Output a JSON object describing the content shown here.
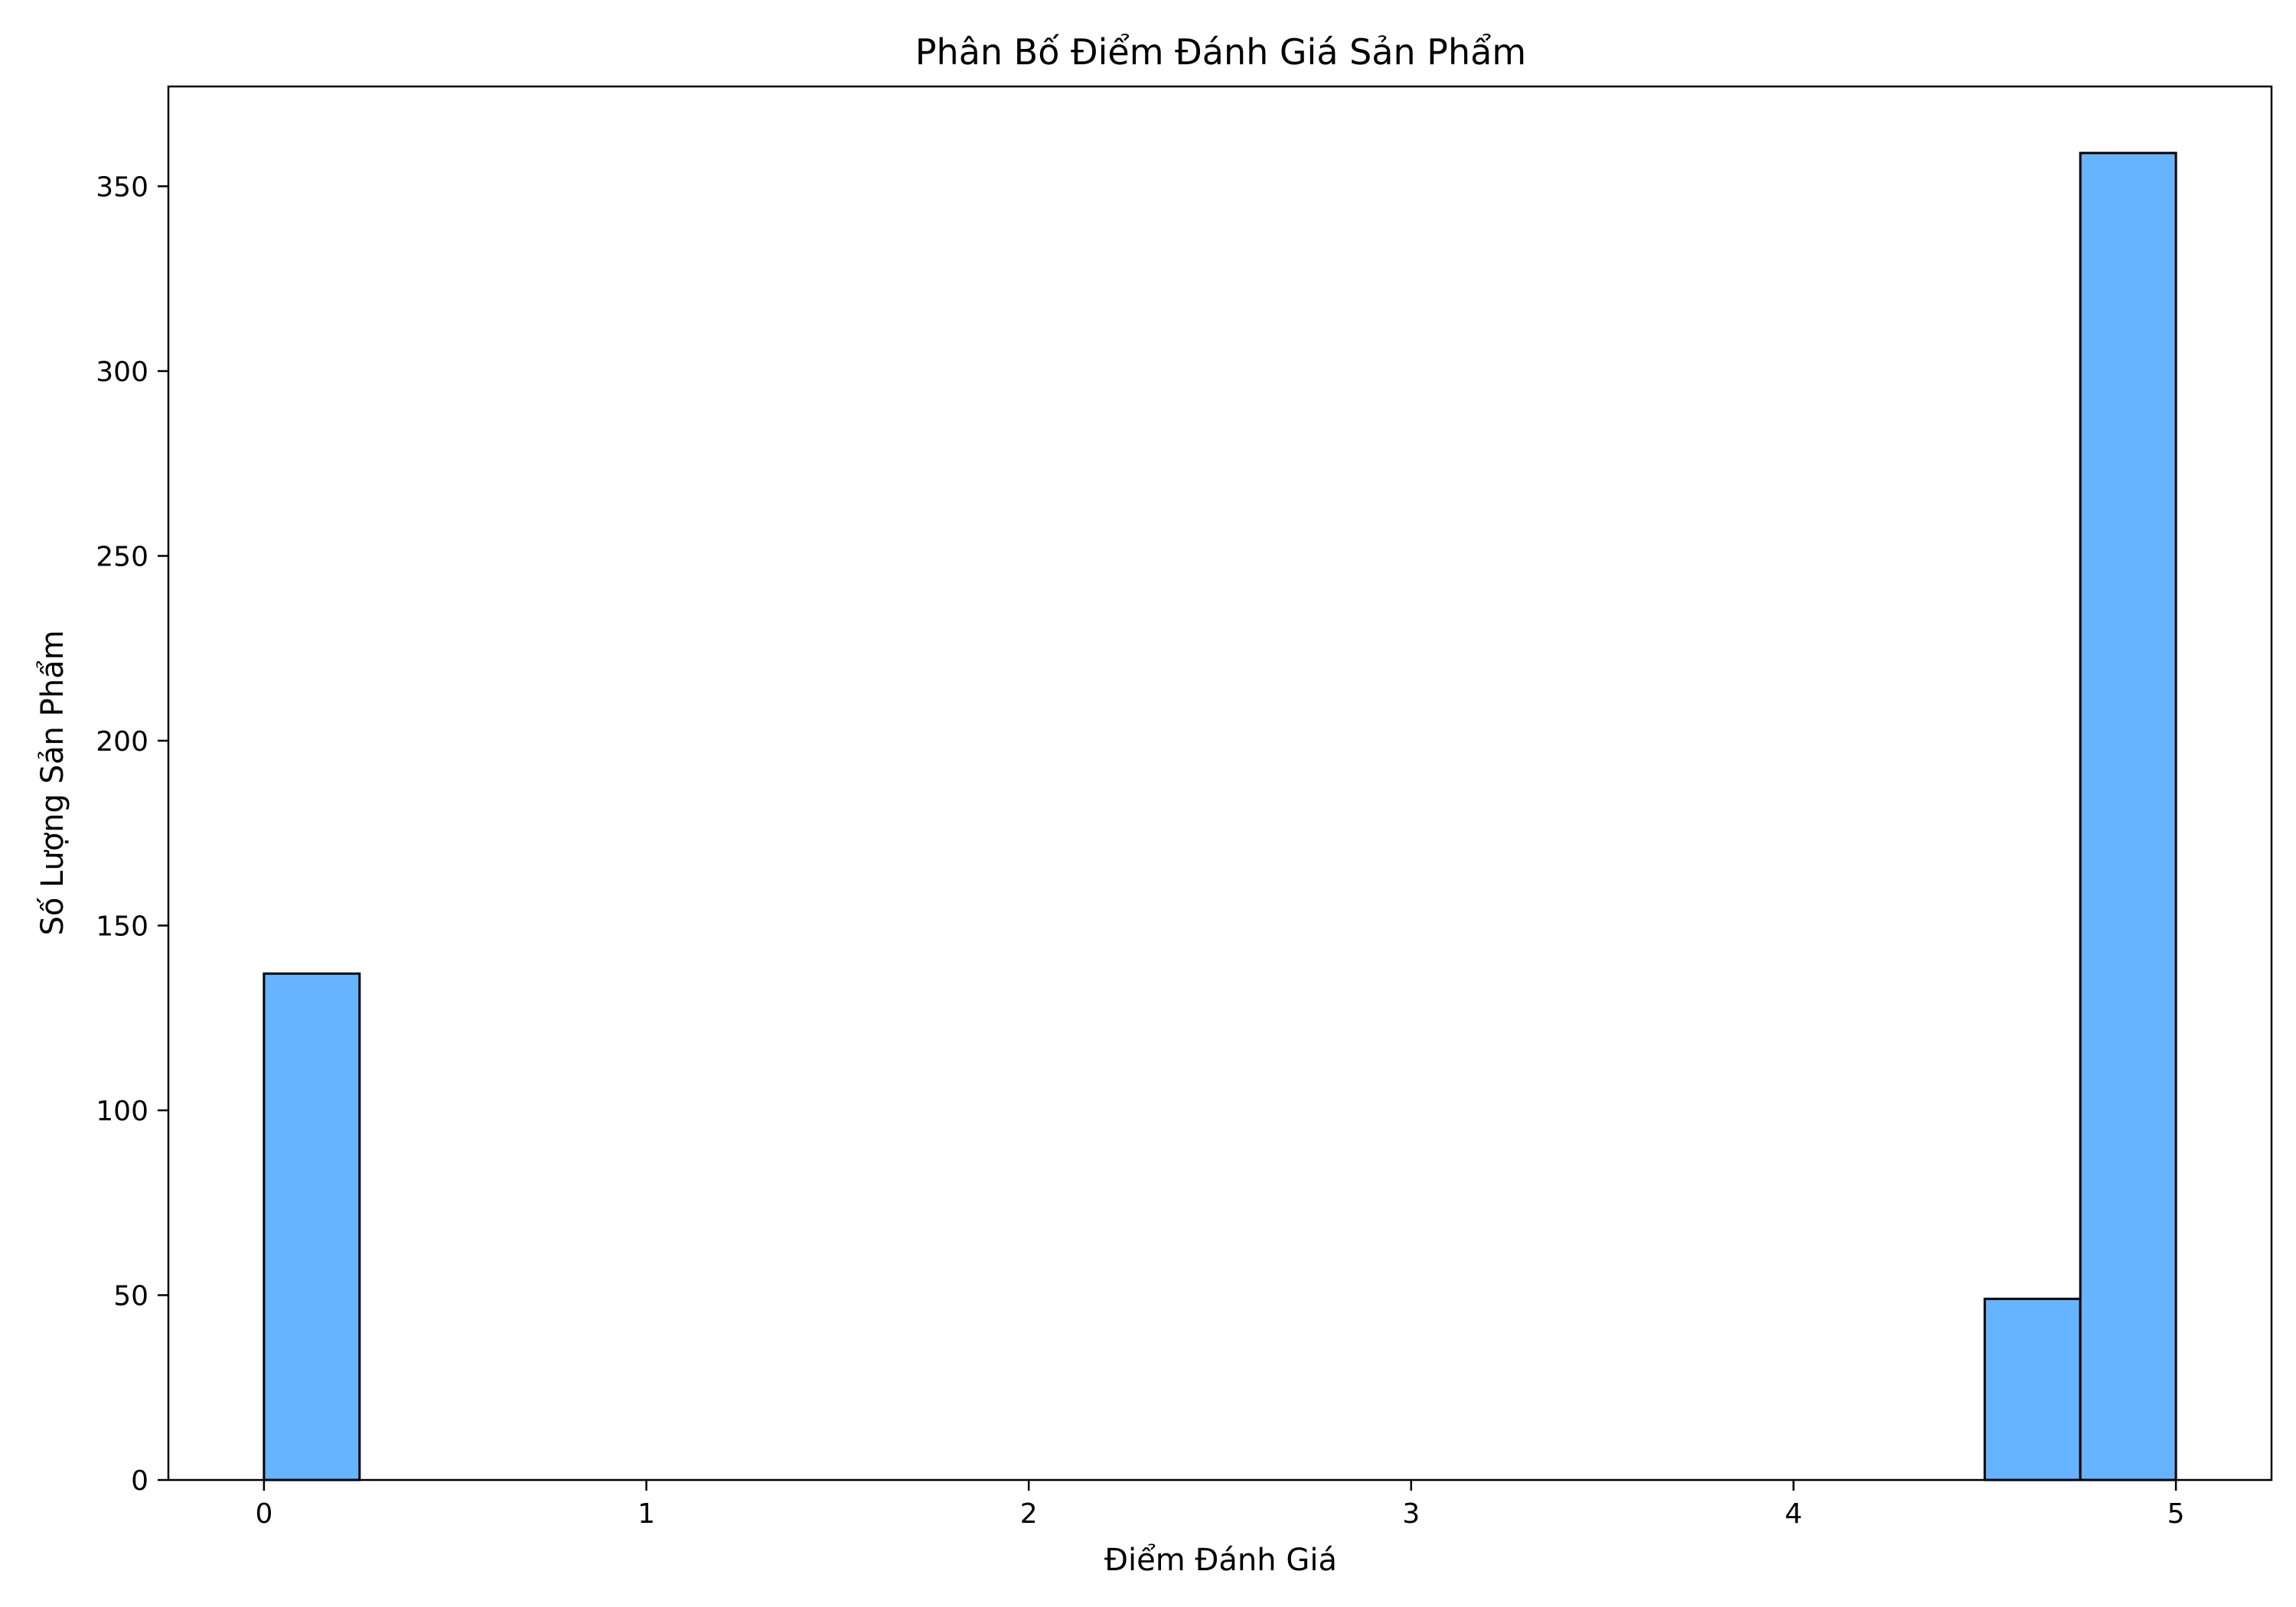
{
  "chart_data": {
    "type": "bar",
    "title": "Phân Bố Điểm Đánh Giá Sản Phẩm",
    "xlabel": "Điểm Đánh Giá",
    "ylabel": "Số Lượng Sản Phẩm",
    "xlim": [
      -0.25,
      5.25
    ],
    "ylim": [
      0,
      377
    ],
    "xticks": [
      0,
      1,
      2,
      3,
      4,
      5
    ],
    "yticks": [
      0,
      50,
      100,
      150,
      200,
      250,
      300,
      350
    ],
    "grid": false,
    "bar_color": "#66b3ff",
    "edge_color": "#000000",
    "bins": [
      {
        "x0": 0.0,
        "x1": 0.25,
        "count": 137
      },
      {
        "x0": 0.25,
        "x1": 0.5,
        "count": 0
      },
      {
        "x0": 0.5,
        "x1": 0.75,
        "count": 0
      },
      {
        "x0": 0.75,
        "x1": 1.0,
        "count": 0
      },
      {
        "x0": 1.0,
        "x1": 1.25,
        "count": 0
      },
      {
        "x0": 1.25,
        "x1": 1.5,
        "count": 0
      },
      {
        "x0": 1.5,
        "x1": 1.75,
        "count": 0
      },
      {
        "x0": 1.75,
        "x1": 2.0,
        "count": 0
      },
      {
        "x0": 2.0,
        "x1": 2.25,
        "count": 0
      },
      {
        "x0": 2.25,
        "x1": 2.5,
        "count": 0
      },
      {
        "x0": 2.5,
        "x1": 2.75,
        "count": 0
      },
      {
        "x0": 2.75,
        "x1": 3.0,
        "count": 0
      },
      {
        "x0": 3.0,
        "x1": 3.25,
        "count": 0
      },
      {
        "x0": 3.25,
        "x1": 3.5,
        "count": 0
      },
      {
        "x0": 3.5,
        "x1": 3.75,
        "count": 0
      },
      {
        "x0": 3.75,
        "x1": 4.0,
        "count": 0
      },
      {
        "x0": 4.0,
        "x1": 4.25,
        "count": 0
      },
      {
        "x0": 4.25,
        "x1": 4.5,
        "count": 0
      },
      {
        "x0": 4.5,
        "x1": 4.75,
        "count": 49
      },
      {
        "x0": 4.75,
        "x1": 5.0,
        "count": 359
      }
    ]
  }
}
